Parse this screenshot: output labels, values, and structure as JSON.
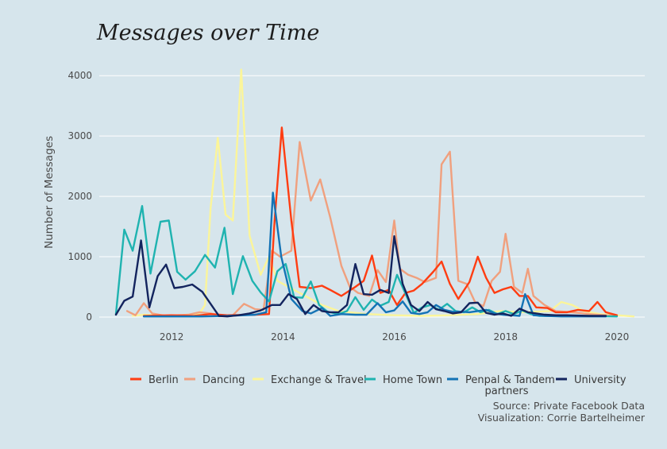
{
  "chart_data": {
    "type": "line",
    "title": "Messages over Time",
    "xlabel": "",
    "ylabel": "Number of Messages",
    "xlim": [
      2010.7,
      2020.5
    ],
    "ylim": [
      0,
      4200
    ],
    "xticks": [
      2012,
      2014,
      2016,
      2018,
      2020
    ],
    "yticks": [
      0,
      1000,
      2000,
      3000,
      4000
    ],
    "grid": "horizontal",
    "legend_position": "bottom",
    "caption": [
      "Source: Private Facebook Data",
      "Visualization: Corrie Bartelheimer"
    ],
    "colors": {
      "background": "#d6e5ec",
      "Berlin": "#ff3d12",
      "Dancing": "#f0a07e",
      "Exchange & Travel": "#fbf59a",
      "Home Town": "#1fb3b0",
      "Penpal & Tandem partners": "#1473b5",
      "University": "#13245e"
    },
    "series": [
      {
        "name": "Exchange & Travel",
        "points": [
          [
            2011.3,
            20
          ],
          [
            2011.5,
            40
          ],
          [
            2011.7,
            30
          ],
          [
            2011.9,
            10
          ],
          [
            2012.1,
            20
          ],
          [
            2012.3,
            40
          ],
          [
            2012.5,
            60
          ],
          [
            2012.6,
            200
          ],
          [
            2012.7,
            1800
          ],
          [
            2012.83,
            2970
          ],
          [
            2012.97,
            1700
          ],
          [
            2013.1,
            1600
          ],
          [
            2013.25,
            4100
          ],
          [
            2013.4,
            1350
          ],
          [
            2013.6,
            700
          ],
          [
            2013.75,
            1000
          ],
          [
            2013.9,
            600
          ],
          [
            2014.1,
            500
          ],
          [
            2014.3,
            400
          ],
          [
            2014.5,
            300
          ],
          [
            2014.7,
            200
          ],
          [
            2015.0,
            100
          ],
          [
            2015.5,
            50
          ],
          [
            2016.0,
            30
          ],
          [
            2016.5,
            20
          ],
          [
            2017.0,
            30
          ],
          [
            2017.5,
            50
          ],
          [
            2017.9,
            100
          ],
          [
            2018.3,
            80
          ],
          [
            2018.8,
            100
          ],
          [
            2019.0,
            250
          ],
          [
            2019.2,
            200
          ],
          [
            2019.4,
            100
          ],
          [
            2019.7,
            50
          ],
          [
            2020.0,
            30
          ],
          [
            2020.3,
            10
          ]
        ]
      },
      {
        "name": "Dancing",
        "points": [
          [
            2011.2,
            100
          ],
          [
            2011.35,
            30
          ],
          [
            2011.5,
            230
          ],
          [
            2011.65,
            60
          ],
          [
            2011.9,
            20
          ],
          [
            2012.3,
            40
          ],
          [
            2012.5,
            80
          ],
          [
            2012.7,
            60
          ],
          [
            2012.9,
            20
          ],
          [
            2013.1,
            30
          ],
          [
            2013.3,
            220
          ],
          [
            2013.5,
            130
          ],
          [
            2013.65,
            120
          ],
          [
            2013.8,
            1100
          ],
          [
            2013.95,
            1000
          ],
          [
            2014.15,
            1100
          ],
          [
            2014.3,
            2900
          ],
          [
            2014.5,
            1930
          ],
          [
            2014.67,
            2280
          ],
          [
            2014.85,
            1650
          ],
          [
            2015.05,
            850
          ],
          [
            2015.2,
            500
          ],
          [
            2015.35,
            400
          ],
          [
            2015.55,
            350
          ],
          [
            2015.7,
            780
          ],
          [
            2015.85,
            580
          ],
          [
            2016.0,
            1600
          ],
          [
            2016.1,
            800
          ],
          [
            2016.25,
            700
          ],
          [
            2016.4,
            650
          ],
          [
            2016.55,
            580
          ],
          [
            2016.75,
            650
          ],
          [
            2016.85,
            2530
          ],
          [
            2017.0,
            2740
          ],
          [
            2017.15,
            600
          ],
          [
            2017.3,
            550
          ],
          [
            2017.45,
            250
          ],
          [
            2017.6,
            180
          ],
          [
            2017.75,
            600
          ],
          [
            2017.9,
            750
          ],
          [
            2018.0,
            1380
          ],
          [
            2018.15,
            500
          ],
          [
            2018.3,
            400
          ],
          [
            2018.4,
            800
          ],
          [
            2018.5,
            350
          ],
          [
            2018.7,
            200
          ],
          [
            2018.9,
            100
          ],
          [
            2019.2,
            80
          ],
          [
            2019.5,
            50
          ],
          [
            2019.8,
            30
          ],
          [
            2020.0,
            20
          ]
        ]
      },
      {
        "name": "Berlin",
        "points": [
          [
            2011.5,
            20
          ],
          [
            2012.0,
            30
          ],
          [
            2012.4,
            20
          ],
          [
            2012.7,
            50
          ],
          [
            2013.0,
            30
          ],
          [
            2013.5,
            40
          ],
          [
            2013.75,
            50
          ],
          [
            2013.85,
            1600
          ],
          [
            2013.98,
            3140
          ],
          [
            2014.15,
            1600
          ],
          [
            2014.3,
            500
          ],
          [
            2014.5,
            480
          ],
          [
            2014.7,
            520
          ],
          [
            2014.85,
            450
          ],
          [
            2015.05,
            350
          ],
          [
            2015.3,
            500
          ],
          [
            2015.45,
            600
          ],
          [
            2015.6,
            1020
          ],
          [
            2015.75,
            400
          ],
          [
            2015.9,
            450
          ],
          [
            2016.05,
            200
          ],
          [
            2016.2,
            400
          ],
          [
            2016.35,
            440
          ],
          [
            2016.5,
            550
          ],
          [
            2016.7,
            750
          ],
          [
            2016.85,
            920
          ],
          [
            2017.0,
            550
          ],
          [
            2017.15,
            300
          ],
          [
            2017.35,
            580
          ],
          [
            2017.5,
            1000
          ],
          [
            2017.65,
            650
          ],
          [
            2017.8,
            400
          ],
          [
            2017.95,
            460
          ],
          [
            2018.1,
            500
          ],
          [
            2018.25,
            350
          ],
          [
            2018.4,
            350
          ],
          [
            2018.55,
            160
          ],
          [
            2018.75,
            150
          ],
          [
            2018.9,
            80
          ],
          [
            2019.1,
            80
          ],
          [
            2019.3,
            120
          ],
          [
            2019.5,
            100
          ],
          [
            2019.65,
            250
          ],
          [
            2019.8,
            80
          ],
          [
            2020.0,
            30
          ]
        ]
      },
      {
        "name": "Home Town",
        "points": [
          [
            2011.0,
            50
          ],
          [
            2011.15,
            1450
          ],
          [
            2011.3,
            1100
          ],
          [
            2011.47,
            1840
          ],
          [
            2011.62,
            720
          ],
          [
            2011.8,
            1580
          ],
          [
            2011.95,
            1600
          ],
          [
            2012.1,
            750
          ],
          [
            2012.25,
            620
          ],
          [
            2012.42,
            760
          ],
          [
            2012.6,
            1030
          ],
          [
            2012.78,
            820
          ],
          [
            2012.95,
            1480
          ],
          [
            2013.1,
            380
          ],
          [
            2013.28,
            1010
          ],
          [
            2013.45,
            600
          ],
          [
            2013.6,
            410
          ],
          [
            2013.75,
            260
          ],
          [
            2013.9,
            760
          ],
          [
            2014.05,
            880
          ],
          [
            2014.2,
            330
          ],
          [
            2014.35,
            320
          ],
          [
            2014.5,
            590
          ],
          [
            2014.65,
            200
          ],
          [
            2014.8,
            90
          ],
          [
            2015.0,
            50
          ],
          [
            2015.15,
            100
          ],
          [
            2015.3,
            330
          ],
          [
            2015.45,
            120
          ],
          [
            2015.6,
            290
          ],
          [
            2015.75,
            190
          ],
          [
            2015.9,
            250
          ],
          [
            2016.05,
            700
          ],
          [
            2016.2,
            390
          ],
          [
            2016.35,
            70
          ],
          [
            2016.5,
            160
          ],
          [
            2016.65,
            200
          ],
          [
            2016.8,
            120
          ],
          [
            2016.95,
            220
          ],
          [
            2017.1,
            100
          ],
          [
            2017.25,
            80
          ],
          [
            2017.4,
            160
          ],
          [
            2017.55,
            80
          ],
          [
            2017.7,
            120
          ],
          [
            2017.85,
            50
          ],
          [
            2018.0,
            100
          ],
          [
            2018.15,
            50
          ],
          [
            2018.3,
            110
          ],
          [
            2018.45,
            50
          ],
          [
            2018.6,
            20
          ],
          [
            2019.0,
            20
          ],
          [
            2019.5,
            20
          ],
          [
            2020.0,
            10
          ]
        ]
      },
      {
        "name": "Penpal & Tandem partners",
        "points": [
          [
            2011.5,
            10
          ],
          [
            2012.0,
            10
          ],
          [
            2012.5,
            10
          ],
          [
            2013.0,
            20
          ],
          [
            2013.5,
            40
          ],
          [
            2013.7,
            80
          ],
          [
            2013.82,
            2060
          ],
          [
            2013.97,
            1000
          ],
          [
            2014.15,
            300
          ],
          [
            2014.35,
            100
          ],
          [
            2014.5,
            60
          ],
          [
            2014.7,
            150
          ],
          [
            2014.85,
            20
          ],
          [
            2015.05,
            50
          ],
          [
            2015.3,
            40
          ],
          [
            2015.5,
            40
          ],
          [
            2015.7,
            230
          ],
          [
            2015.85,
            80
          ],
          [
            2016.0,
            110
          ],
          [
            2016.15,
            260
          ],
          [
            2016.3,
            70
          ],
          [
            2016.45,
            50
          ],
          [
            2016.6,
            80
          ],
          [
            2016.75,
            200
          ],
          [
            2016.9,
            120
          ],
          [
            2017.05,
            90
          ],
          [
            2017.2,
            90
          ],
          [
            2017.35,
            80
          ],
          [
            2017.5,
            100
          ],
          [
            2017.65,
            120
          ],
          [
            2017.8,
            60
          ],
          [
            2017.95,
            40
          ],
          [
            2018.1,
            30
          ],
          [
            2018.25,
            20
          ],
          [
            2018.35,
            380
          ],
          [
            2018.5,
            30
          ],
          [
            2018.7,
            20
          ],
          [
            2019.0,
            10
          ],
          [
            2019.5,
            10
          ],
          [
            2019.8,
            10
          ]
        ]
      },
      {
        "name": "University",
        "points": [
          [
            2011.0,
            40
          ],
          [
            2011.15,
            270
          ],
          [
            2011.3,
            340
          ],
          [
            2011.45,
            1270
          ],
          [
            2011.6,
            160
          ],
          [
            2011.75,
            680
          ],
          [
            2011.9,
            870
          ],
          [
            2012.05,
            480
          ],
          [
            2012.2,
            500
          ],
          [
            2012.37,
            540
          ],
          [
            2012.55,
            420
          ],
          [
            2012.7,
            220
          ],
          [
            2012.85,
            20
          ],
          [
            2013.0,
            10
          ],
          [
            2013.2,
            30
          ],
          [
            2013.4,
            60
          ],
          [
            2013.6,
            110
          ],
          [
            2013.8,
            200
          ],
          [
            2013.95,
            200
          ],
          [
            2014.1,
            380
          ],
          [
            2014.25,
            300
          ],
          [
            2014.4,
            50
          ],
          [
            2014.55,
            200
          ],
          [
            2014.7,
            100
          ],
          [
            2014.85,
            80
          ],
          [
            2015.0,
            80
          ],
          [
            2015.15,
            200
          ],
          [
            2015.3,
            880
          ],
          [
            2015.45,
            380
          ],
          [
            2015.6,
            370
          ],
          [
            2015.75,
            450
          ],
          [
            2015.9,
            400
          ],
          [
            2016.0,
            1340
          ],
          [
            2016.15,
            550
          ],
          [
            2016.3,
            200
          ],
          [
            2016.45,
            100
          ],
          [
            2016.6,
            250
          ],
          [
            2016.75,
            130
          ],
          [
            2016.9,
            100
          ],
          [
            2017.05,
            60
          ],
          [
            2017.2,
            80
          ],
          [
            2017.35,
            230
          ],
          [
            2017.5,
            240
          ],
          [
            2017.65,
            70
          ],
          [
            2017.8,
            40
          ],
          [
            2017.95,
            60
          ],
          [
            2018.1,
            20
          ],
          [
            2018.25,
            140
          ],
          [
            2018.4,
            80
          ],
          [
            2018.55,
            60
          ],
          [
            2018.7,
            40
          ],
          [
            2018.9,
            30
          ],
          [
            2019.1,
            30
          ],
          [
            2019.5,
            20
          ],
          [
            2019.8,
            20
          ]
        ]
      }
    ],
    "legend": [
      {
        "series": "Berlin",
        "label_lines": [
          "Berlin"
        ]
      },
      {
        "series": "Dancing",
        "label_lines": [
          "Dancing"
        ]
      },
      {
        "series": "Exchange & Travel",
        "label_lines": [
          "Exchange & Travel"
        ]
      },
      {
        "series": "Home Town",
        "label_lines": [
          "Home Town"
        ]
      },
      {
        "series": "Penpal & Tandem partners",
        "label_lines": [
          "Penpal & Tandem",
          "partners"
        ]
      },
      {
        "series": "University",
        "label_lines": [
          "University"
        ]
      }
    ]
  }
}
